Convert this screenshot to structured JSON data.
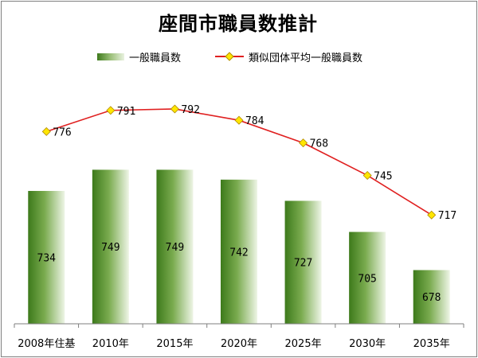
{
  "chart_data": {
    "type": "bar",
    "title": "座間市職員数推計",
    "categories": [
      "2008年住基",
      "2010年",
      "2015年",
      "2020年",
      "2025年",
      "2030年",
      "2035年"
    ],
    "series": [
      {
        "name": "一般職員数",
        "kind": "bar",
        "values": [
          734,
          749,
          749,
          742,
          727,
          705,
          678
        ],
        "color": "#5a8f2f"
      },
      {
        "name": "類似団体平均一般職員数",
        "kind": "line",
        "values": [
          776,
          791,
          792,
          784,
          768,
          745,
          717
        ],
        "color": "#e02020",
        "marker_color": "#ffe600"
      }
    ],
    "ylim": [
      640,
      810
    ],
    "grid": false,
    "legend_position": "top-center"
  }
}
